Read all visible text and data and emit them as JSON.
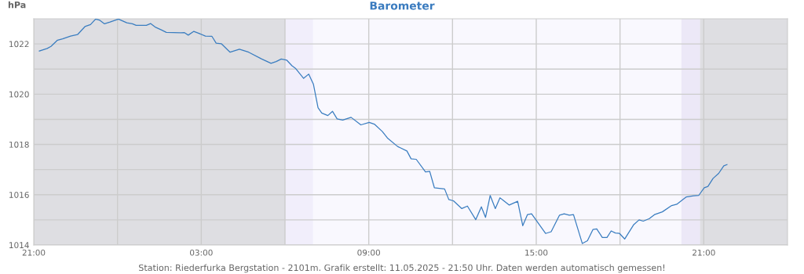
{
  "chart_data": {
    "type": "line",
    "title": "Barometer",
    "ylabel": "hPa",
    "x": [
      "2025-05-10T21:12",
      "2025-05-10T21:29",
      "2025-05-10T21:37",
      "2025-05-10T21:51",
      "2025-05-10T22:02",
      "2025-05-10T22:19",
      "2025-05-10T22:34",
      "2025-05-10T22:50",
      "2025-05-10T23:02",
      "2025-05-10T23:13",
      "2025-05-10T23:21",
      "2025-05-10T23:32",
      "2025-05-10T23:44",
      "2025-05-11T00:02",
      "2025-05-11T00:20",
      "2025-05-11T00:32",
      "2025-05-11T00:40",
      "2025-05-11T01:02",
      "2025-05-11T01:11",
      "2025-05-11T01:22",
      "2025-05-11T01:34",
      "2025-05-11T01:45",
      "2025-05-11T02:16",
      "2025-05-11T02:24",
      "2025-05-11T02:32",
      "2025-05-11T02:44",
      "2025-05-11T02:55",
      "2025-05-11T03:09",
      "2025-05-11T03:23",
      "2025-05-11T03:32",
      "2025-05-11T03:43",
      "2025-05-11T04:02",
      "2025-05-11T04:22",
      "2025-05-11T04:42",
      "2025-05-11T05:10",
      "2025-05-11T05:30",
      "2025-05-11T05:41",
      "2025-05-11T05:52",
      "2025-05-11T06:04",
      "2025-05-11T06:15",
      "2025-05-11T06:23",
      "2025-05-11T06:40",
      "2025-05-11T06:51",
      "2025-05-11T07:01",
      "2025-05-11T07:11",
      "2025-05-11T07:19",
      "2025-05-11T07:32",
      "2025-05-11T07:42",
      "2025-05-11T07:52",
      "2025-05-11T08:04",
      "2025-05-11T08:22",
      "2025-05-11T08:43",
      "2025-05-11T09:01",
      "2025-05-11T09:12",
      "2025-05-11T09:29",
      "2025-05-11T09:40",
      "2025-05-11T10:02",
      "2025-05-11T10:22",
      "2025-05-11T10:31",
      "2025-05-11T10:42",
      "2025-05-11T11:02",
      "2025-05-11T11:11",
      "2025-05-11T11:21",
      "2025-05-11T11:43",
      "2025-05-11T11:52",
      "2025-05-11T12:02",
      "2025-05-11T12:20",
      "2025-05-11T12:32",
      "2025-05-11T12:50",
      "2025-05-11T13:02",
      "2025-05-11T13:11",
      "2025-05-11T13:21",
      "2025-05-11T13:32",
      "2025-05-11T13:42",
      "2025-05-11T14:02",
      "2025-05-11T14:20",
      "2025-05-11T14:31",
      "2025-05-11T14:41",
      "2025-05-11T14:50",
      "2025-05-11T15:20",
      "2025-05-11T15:32",
      "2025-05-11T15:50",
      "2025-05-11T16:00",
      "2025-05-11T16:11",
      "2025-05-11T16:20",
      "2025-05-11T16:39",
      "2025-05-11T16:50",
      "2025-05-11T17:02",
      "2025-05-11T17:10",
      "2025-05-11T17:22",
      "2025-05-11T17:32",
      "2025-05-11T17:41",
      "2025-05-11T17:50",
      "2025-05-11T17:59",
      "2025-05-11T18:10",
      "2025-05-11T18:29",
      "2025-05-11T18:41",
      "2025-05-11T18:50",
      "2025-05-11T19:03",
      "2025-05-11T19:14",
      "2025-05-11T19:31",
      "2025-05-11T19:51",
      "2025-05-11T20:02",
      "2025-05-11T20:22",
      "2025-05-11T20:38",
      "2025-05-11T20:49",
      "2025-05-11T21:01",
      "2025-05-11T21:09",
      "2025-05-11T21:20",
      "2025-05-11T21:32",
      "2025-05-11T21:43",
      "2025-05-11T21:50"
    ],
    "series": [
      {
        "color": "#3a7dc0",
        "values": [
          1021.72,
          1021.82,
          1021.9,
          1022.15,
          1022.2,
          1022.31,
          1022.37,
          1022.69,
          1022.77,
          1022.99,
          1022.95,
          1022.8,
          1022.87,
          1022.99,
          1022.84,
          1022.8,
          1022.74,
          1022.74,
          1022.81,
          1022.66,
          1022.56,
          1022.46,
          1022.44,
          1022.45,
          1022.35,
          1022.5,
          1022.42,
          1022.31,
          1022.3,
          1022.03,
          1022.01,
          1021.67,
          1021.79,
          1021.67,
          1021.4,
          1021.23,
          1021.3,
          1021.4,
          1021.35,
          1021.13,
          1021.02,
          1020.63,
          1020.8,
          1020.4,
          1019.46,
          1019.25,
          1019.15,
          1019.32,
          1019.02,
          1018.97,
          1019.08,
          1018.78,
          1018.88,
          1018.81,
          1018.52,
          1018.26,
          1017.92,
          1017.74,
          1017.43,
          1017.41,
          1016.91,
          1016.93,
          1016.28,
          1016.23,
          1015.81,
          1015.76,
          1015.45,
          1015.55,
          1015.01,
          1015.52,
          1015.1,
          1015.97,
          1015.45,
          1015.88,
          1015.59,
          1015.74,
          1014.77,
          1015.21,
          1015.24,
          1014.46,
          1014.53,
          1015.19,
          1015.24,
          1015.19,
          1015.21,
          1014.06,
          1014.17,
          1014.62,
          1014.64,
          1014.3,
          1014.3,
          1014.56,
          1014.48,
          1014.46,
          1014.24,
          1014.8,
          1015.0,
          1014.95,
          1015.05,
          1015.21,
          1015.32,
          1015.57,
          1015.62,
          1015.91,
          1015.96,
          1015.97,
          1016.28,
          1016.33,
          1016.65,
          1016.85,
          1017.15,
          1017.2
        ]
      }
    ],
    "xlim": [
      "2025-05-10T21:00",
      "2025-05-12T00:00"
    ],
    "xticks": [
      {
        "value": "2025-05-10T21:00",
        "label": "21:00"
      },
      {
        "value": "2025-05-11T00:00",
        "label": null
      },
      {
        "value": "2025-05-11T03:00",
        "label": "03:00"
      },
      {
        "value": "2025-05-11T06:00",
        "label": null
      },
      {
        "value": "2025-05-11T09:00",
        "label": "09:00"
      },
      {
        "value": "2025-05-11T12:00",
        "label": null
      },
      {
        "value": "2025-05-11T15:00",
        "label": "15:00"
      },
      {
        "value": "2025-05-11T18:00",
        "label": null
      },
      {
        "value": "2025-05-11T21:00",
        "label": "21:00"
      }
    ],
    "ylim": [
      1014,
      1023
    ],
    "yticks": [
      1014,
      {
        "value": 1015,
        "label": null
      },
      1016,
      {
        "value": 1017,
        "label": null
      },
      1018,
      {
        "value": 1019,
        "label": null
      },
      1020,
      {
        "value": 1021,
        "label": null
      },
      1022
    ],
    "grid": true,
    "marker": "none",
    "line_style": "solid",
    "bands": [
      {
        "axis": "x",
        "from": "2025-05-10T21:00",
        "to": "2025-05-11T06:00",
        "color": "#dedee2"
      },
      {
        "axis": "x",
        "from": "2025-05-11T06:00",
        "to": "2025-05-11T07:00",
        "color": "#f1eefb"
      },
      {
        "axis": "x",
        "from": "2025-05-11T20:12",
        "to": "2025-05-11T20:52",
        "color": "#ece8f7"
      },
      {
        "axis": "x",
        "from": "2025-05-11T20:52",
        "to": "2025-05-12T00:00",
        "color": "#dedee2"
      }
    ],
    "annotations": [
      "Station: Riederfurka Bergstation - 2101m. Grafik erstellt: 11.05.2025 - 21:50 Uhr. Daten werden automatisch gemessen!"
    ]
  }
}
